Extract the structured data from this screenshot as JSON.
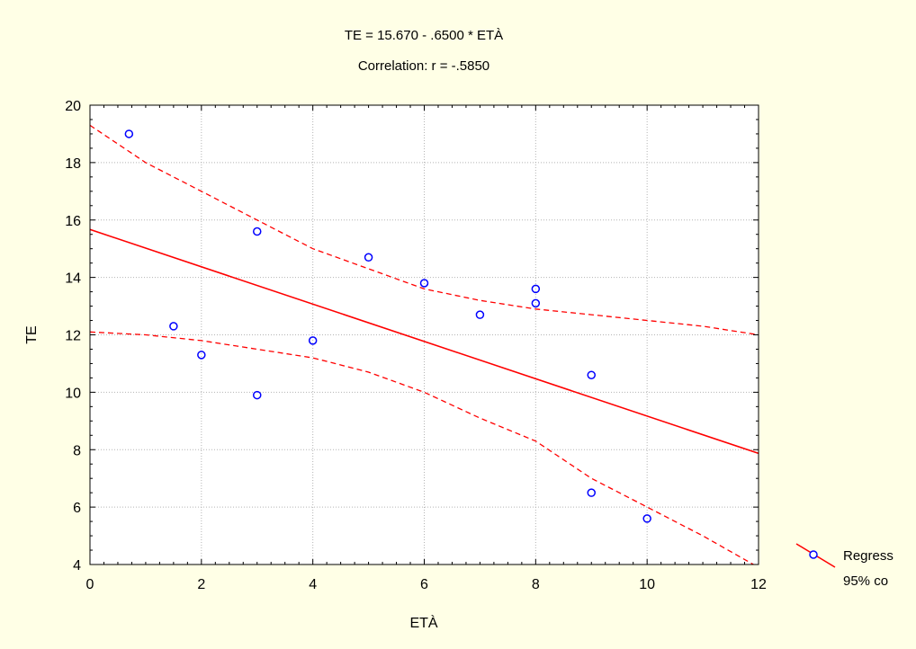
{
  "chart_data": {
    "type": "scatter",
    "title": "TE = 15.670 - .6500 * ETÀ",
    "subtitle": "Correlation: r = -.5850",
    "xlabel": "ETÀ",
    "ylabel": "TE",
    "xlim": [
      0,
      12
    ],
    "ylim": [
      4,
      20
    ],
    "xticks": [
      0,
      2,
      4,
      6,
      8,
      10,
      12
    ],
    "yticks": [
      4,
      6,
      8,
      10,
      12,
      14,
      16,
      18,
      20
    ],
    "grid": true,
    "legend_position": "right",
    "legend": [
      "Regress",
      "95% co"
    ],
    "colors": {
      "points": "#0000ff",
      "regression": "#ff0000",
      "confidence": "#ff0000",
      "background": "#ffffe6",
      "plot_area": "#ffffff",
      "grid": "#b4b4b4"
    },
    "points": [
      {
        "x": 0.7,
        "y": 19.0
      },
      {
        "x": 1.5,
        "y": 12.3
      },
      {
        "x": 2.0,
        "y": 11.3
      },
      {
        "x": 3.0,
        "y": 15.6
      },
      {
        "x": 3.0,
        "y": 9.9
      },
      {
        "x": 4.0,
        "y": 11.8
      },
      {
        "x": 5.0,
        "y": 14.7
      },
      {
        "x": 6.0,
        "y": 13.8
      },
      {
        "x": 7.0,
        "y": 12.7
      },
      {
        "x": 8.0,
        "y": 13.1
      },
      {
        "x": 8.0,
        "y": 13.6
      },
      {
        "x": 9.0,
        "y": 10.6
      },
      {
        "x": 9.0,
        "y": 6.5
      },
      {
        "x": 10.0,
        "y": 5.6
      }
    ],
    "regression": {
      "intercept": 15.67,
      "slope": -0.65
    },
    "confidence_upper": {
      "x": [
        0,
        1,
        2,
        3,
        4,
        5,
        6,
        7,
        8,
        9,
        10,
        11,
        12
      ],
      "y": [
        19.3,
        18.0,
        17.0,
        16.0,
        15.0,
        14.3,
        13.6,
        13.2,
        12.9,
        12.7,
        12.5,
        12.3,
        12.0
      ]
    },
    "confidence_lower": {
      "x": [
        0,
        1,
        2,
        3,
        4,
        5,
        6,
        7,
        8,
        9,
        10,
        11,
        12
      ],
      "y": [
        12.1,
        12.0,
        11.8,
        11.5,
        11.2,
        10.7,
        10.0,
        9.1,
        8.3,
        7.0,
        6.0,
        5.0,
        3.9
      ]
    }
  }
}
